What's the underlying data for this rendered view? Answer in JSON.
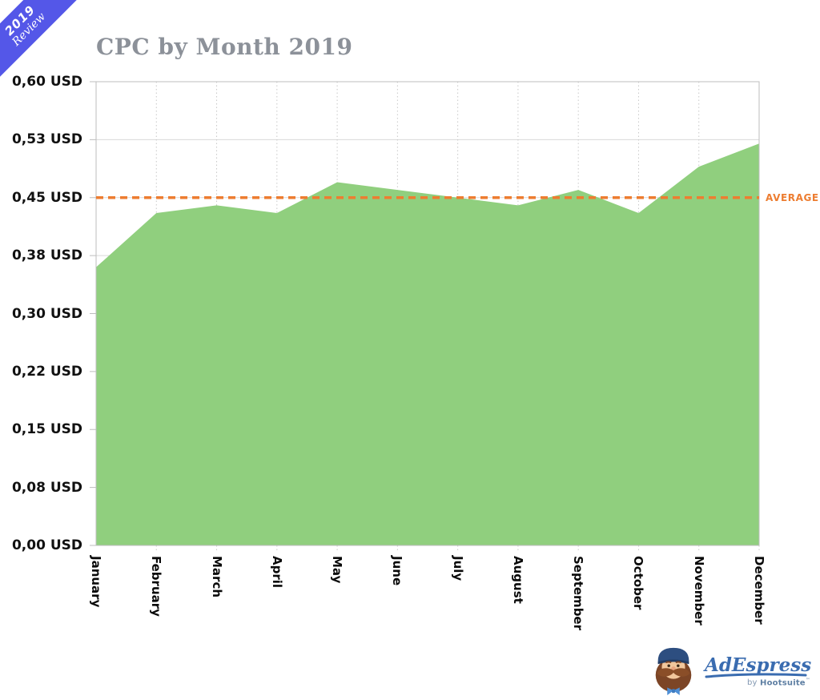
{
  "ribbon": {
    "line1": "2019",
    "line2": "Review",
    "bg_color": "#5457e8",
    "text_color": "#ffffff"
  },
  "header": {
    "title": "CPC by Month 2019",
    "title_color": "#8c9199"
  },
  "chart_data": {
    "type": "area",
    "title": "CPC by Month 2019",
    "categories": [
      "January",
      "February",
      "March",
      "April",
      "May",
      "June",
      "July",
      "August",
      "September",
      "October",
      "November",
      "December"
    ],
    "series": [
      {
        "name": "CPC (USD)",
        "values": [
          0.36,
          0.43,
          0.44,
          0.43,
          0.47,
          0.46,
          0.45,
          0.44,
          0.46,
          0.43,
          0.49,
          0.52
        ]
      }
    ],
    "average_line": {
      "value": 0.45,
      "label": "AVERAGE",
      "color": "#ed7d31"
    },
    "y_tick_labels": [
      "0,60 USD",
      "0,53 USD",
      "0,45 USD",
      "0,38 USD",
      "0,30 USD",
      "0,22 USD",
      "0,15 USD",
      "0,08 USD",
      "0,00 USD"
    ],
    "y_tick_values": [
      0.6,
      0.525,
      0.45,
      0.375,
      0.3,
      0.225,
      0.15,
      0.075,
      0.0
    ],
    "ylim": [
      0,
      0.6
    ],
    "area_color": "#90cf7e",
    "grid": true,
    "legend": "none"
  },
  "logo": {
    "brand": "AdEspresso",
    "brand_color": "#3a6cb0",
    "byline_by": "by",
    "byline_brand": "Hootsuite",
    "byline_tm": "™",
    "mascot": "barista-mascot-icon"
  }
}
